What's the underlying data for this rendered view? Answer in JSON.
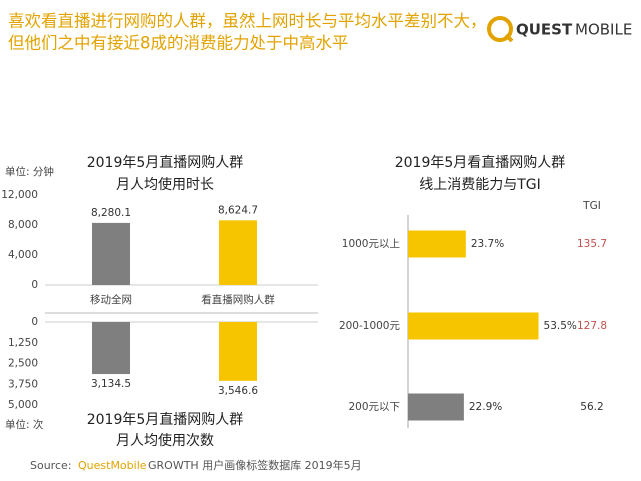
{
  "header": {
    "title_lines": [
      "喜欢看直播进行网购的人群，虽然上网时长与平均水平差别不大，",
      "但他们之中有接近8成的消费能力处于中高水平"
    ],
    "logo_quest": "QUEST",
    "logo_mobile": "MOBILE"
  },
  "chart_data": [
    {
      "type": "bar",
      "title": "2019年5月直播网购人群",
      "subtitle": "月人均使用时长",
      "unit_label": "单位: 分钟",
      "categories": [
        "移动全网",
        "看直播网购人群"
      ],
      "values": [
        8280.1,
        8624.7
      ],
      "value_labels": [
        "8,280.1",
        "8,624.7"
      ],
      "colors": [
        "#7f7f7f",
        "#f7c500"
      ],
      "ylim": [
        0,
        12000
      ],
      "yticks": [
        0,
        {
          "value": 4000,
          "label": "4,000"
        },
        {
          "value": 8000,
          "label": "8,000"
        },
        {
          "value": 12000,
          "label": "12,000"
        }
      ]
    },
    {
      "type": "bar",
      "title": "2019年5月直播网购人群",
      "subtitle": "月人均使用次数",
      "unit_label": "单位: 次",
      "values": [
        3134.5,
        3546.6
      ],
      "value_labels": [
        "3,134.5",
        "3,546.6"
      ],
      "colors": [
        "#7f7f7f",
        "#f7c500"
      ],
      "ylim": [
        0,
        5000
      ],
      "inverted": true,
      "yticks": [
        0,
        {
          "value": 1250,
          "label": "1,250"
        },
        {
          "value": 2500,
          "label": "2,500"
        },
        {
          "value": 3750,
          "label": "3,750"
        },
        {
          "value": 5000,
          "label": "5,000"
        }
      ]
    },
    {
      "type": "hbar",
      "title": "2019年5月看直播网购人群",
      "subtitle": "线上消费能力与TGI",
      "categories": [
        "1000元以上",
        "200-1000元",
        "200元以下"
      ],
      "values": [
        23.7,
        53.5,
        22.9
      ],
      "value_labels": [
        "23.7%",
        "53.5%",
        "22.9%"
      ],
      "colors": [
        "#f7c500",
        "#f7c500",
        "#7f7f7f"
      ],
      "tgi_header": "TGI",
      "tgi": [
        135.7,
        127.8,
        56.2
      ],
      "tgi_colors": [
        "#c0504d",
        "#c0504d",
        "#333333"
      ]
    }
  ],
  "footer": {
    "source_label": "Source:",
    "source_brand": "QuestMobile",
    "source_text": "GROWTH 用户画像标签数据库 2019年5月"
  }
}
